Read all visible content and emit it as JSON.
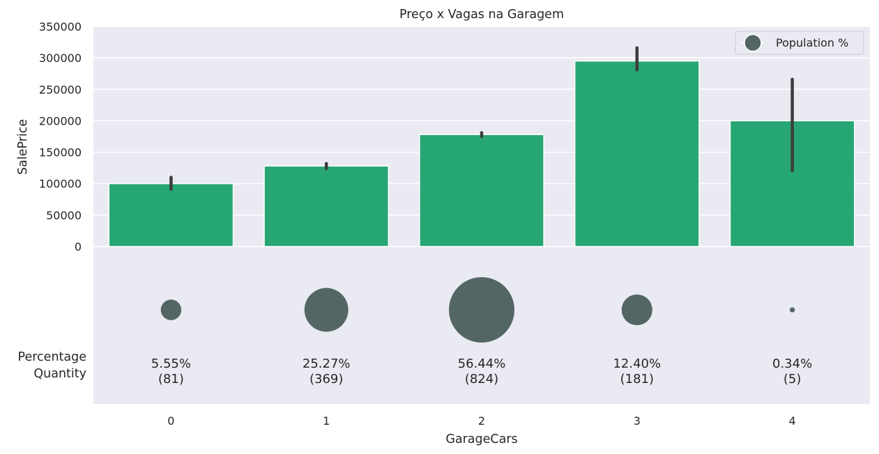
{
  "chart_data": [
    {
      "type": "bar",
      "title": "Preço x Vagas na Garagem",
      "xlabel": "",
      "ylabel": "SalePrice",
      "categories": [
        "0",
        "1",
        "2",
        "3",
        "4"
      ],
      "values": [
        100000,
        128000,
        178000,
        295000,
        200000
      ],
      "error_low": [
        91000,
        124000,
        175000,
        281000,
        121000
      ],
      "error_high": [
        110000,
        132000,
        181000,
        316000,
        266000
      ],
      "ylim": [
        0,
        350000
      ],
      "yticks": [
        "0",
        "50000",
        "100000",
        "150000",
        "200000",
        "250000",
        "300000",
        "350000"
      ],
      "grid": true,
      "bar_color": "#26a672"
    },
    {
      "type": "scatter",
      "xlabel": "GarageCars",
      "ylabel_lines": [
        "Percentage",
        "Quantity"
      ],
      "categories": [
        "0",
        "1",
        "2",
        "3",
        "4"
      ],
      "percent": [
        5.55,
        25.27,
        56.44,
        12.4,
        0.34
      ],
      "percent_labels": [
        "5.55%",
        "25.27%",
        "56.44%",
        "12.40%",
        "0.34%"
      ],
      "count_labels": [
        "(81)",
        "(369)",
        "(824)",
        "(181)",
        "(5)"
      ],
      "legend": {
        "label": "Population %",
        "position": "top-right"
      },
      "marker_color": "#536663"
    }
  ]
}
